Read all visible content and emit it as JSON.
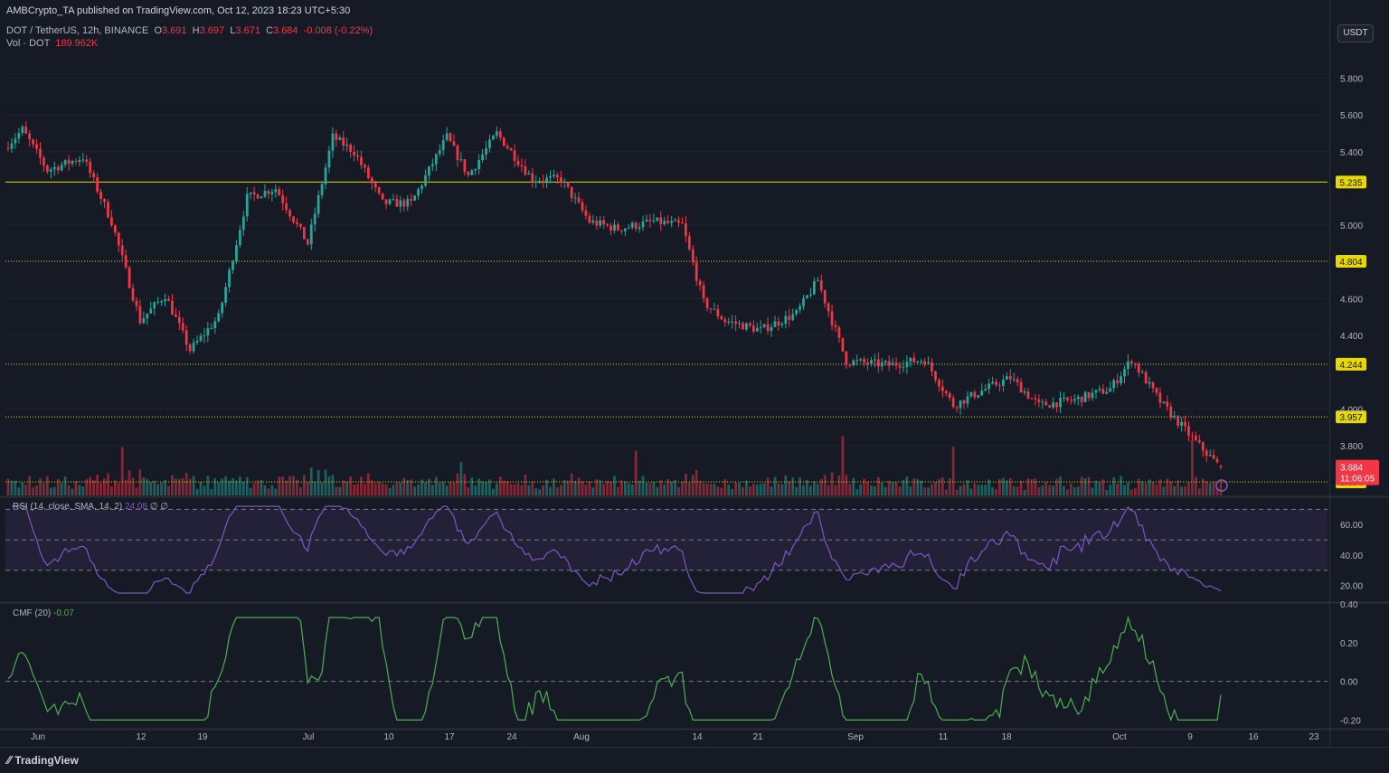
{
  "publisher": "AMBCrypto_TA published on TradingView.com, Oct 12, 2023 18:23 UTC+5:30",
  "symbol_line": {
    "symbol": "DOT / TetherUS, 12h, BINANCE",
    "o_label": "O",
    "o_value": "3.691",
    "h_label": "H",
    "h_value": "3.697",
    "l_label": "L",
    "l_value": "3.671",
    "c_label": "C",
    "c_value": "3.684",
    "change": "-0.008 (-0.22%)"
  },
  "volume_line": {
    "label": "Vol · DOT",
    "value": "189.962K"
  },
  "currency": "USDT",
  "brand": "TradingView",
  "colors": {
    "background": "#161a25",
    "up": "#26a69a",
    "down": "#f23645",
    "level": "#e6d800",
    "rsi": "#7e57c2",
    "cmf": "#4caf50",
    "grid": "#2a2e39",
    "text": "#b2b5be"
  },
  "rsi_panel": {
    "label": "RSI (14, close, SMA, 14, 2)",
    "value": "24.08",
    "extra": "∅  ∅"
  },
  "cmf_panel": {
    "label": "CMF (20)",
    "value": "-0.07"
  },
  "chart_data": {
    "type": "candlestick",
    "x_tick_labels": [
      "Jun",
      "12",
      "19",
      "Jul",
      "10",
      "17",
      "24",
      "Aug",
      "14",
      "21",
      "Sep",
      "11",
      "18",
      "Oct",
      "9",
      "16",
      "23"
    ],
    "price_axis": {
      "ticks": [
        "5.800",
        "5.600",
        "5.400",
        "5.000",
        "4.600",
        "4.400",
        "4.000",
        "3.800"
      ],
      "ylim": [
        3.53,
        5.93
      ]
    },
    "levels": [
      {
        "value": 5.235,
        "label": "5.235",
        "style": "solid"
      },
      {
        "value": 4.804,
        "label": "4.804",
        "style": "dotted"
      },
      {
        "value": 4.244,
        "label": "4.244",
        "style": "dotted"
      },
      {
        "value": 3.957,
        "label": "3.957",
        "style": "dotted"
      },
      {
        "value": 3.604,
        "label": "3.604",
        "style": "dotted"
      }
    ],
    "last_price": {
      "value": 3.684,
      "label": "3.684",
      "countdown": "11:06:05"
    },
    "rsi": {
      "ticks": [
        "60.00",
        "40.00",
        "20.00"
      ],
      "ylim": [
        12,
        75
      ],
      "bands": [
        70,
        50,
        30
      ],
      "last": 24.08
    },
    "cmf": {
      "ticks": [
        "0.40",
        "0.20",
        "0.00",
        "-0.20"
      ],
      "ylim": [
        -0.24,
        0.4
      ],
      "zero_line": 0,
      "last": -0.07
    }
  }
}
